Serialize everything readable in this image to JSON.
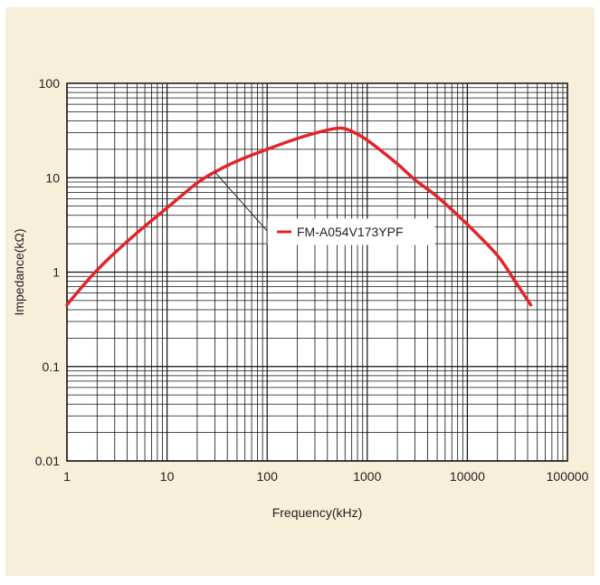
{
  "chart_data": {
    "type": "line",
    "title": "",
    "xlabel": "Frequency(kHz)",
    "ylabel": "Impedance(kΩ)",
    "x_scale": "log",
    "y_scale": "log",
    "xlim": [
      1,
      100000
    ],
    "ylim": [
      0.01,
      100
    ],
    "x_tick_labels": [
      "1",
      "10",
      "100",
      "1000",
      "10000",
      "100000"
    ],
    "y_tick_labels": [
      "100",
      "10",
      "1",
      "0.1",
      "0.01"
    ],
    "grid": true,
    "legend_position": "center-right",
    "series": [
      {
        "name": "FM-A054V173YPF",
        "color": "#e3242b",
        "points": [
          [
            1,
            0.45
          ],
          [
            1.5,
            0.75
          ],
          [
            2,
            1.05
          ],
          [
            3,
            1.6
          ],
          [
            5,
            2.6
          ],
          [
            10,
            4.8
          ],
          [
            20,
            8.8
          ],
          [
            30,
            11.5
          ],
          [
            50,
            15
          ],
          [
            100,
            20
          ],
          [
            200,
            26
          ],
          [
            400,
            32
          ],
          [
            550,
            33.5
          ],
          [
            700,
            31
          ],
          [
            1000,
            25
          ],
          [
            2000,
            14
          ],
          [
            3000,
            9.5
          ],
          [
            5000,
            6.3
          ],
          [
            10000,
            3.2
          ],
          [
            20000,
            1.5
          ],
          [
            30000,
            0.8
          ],
          [
            43000,
            0.45
          ]
        ]
      }
    ]
  },
  "background_color": "#f8efda",
  "plot_background_color": "#ffffff",
  "grid_color": "#111111"
}
